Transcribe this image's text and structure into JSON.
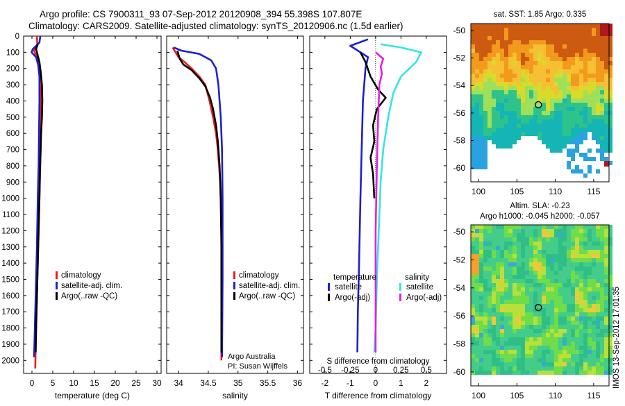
{
  "header": {
    "line1": "Argo profile: CS 7900311_93 07-Sep-2012 20120908_394 55.398S 107.807E",
    "line2": "Climatology: CARS2009. Satellite-adjusted climatology: synTS_20120906.nc (1.5d earlier)"
  },
  "footer_notes": {
    "argo_australia": "Argo Australia",
    "pi": "PI: Susan Wijffels"
  },
  "side_label": "IMOS 13-Sep-2012 17:01:35",
  "colors": {
    "red": "#ee1c1c",
    "blue": "#1e1ed2",
    "black": "#000000",
    "cyan": "#33e6e6",
    "magenta": "#e61ee6"
  },
  "map_colors": {
    "sst": [
      "#cc5a10",
      "#f29a1c",
      "#f5c033",
      "#d9da2a",
      "#9ee05a",
      "#2ec38a",
      "#15b5b5"
    ],
    "sla": [
      "#2fbf86",
      "#44cc8a",
      "#6fdc4a",
      "#b9e03a",
      "#f2c63a",
      "#38a8d8"
    ]
  },
  "chart_data": [
    {
      "type": "line",
      "id": "temperature",
      "xlabel": "temperature (deg C)",
      "xlim": [
        -2,
        31
      ],
      "xticks": [
        0,
        5,
        10,
        15,
        20,
        25,
        30
      ],
      "ylim": [
        2080,
        0
      ],
      "yticks": [
        0,
        100,
        200,
        300,
        400,
        500,
        600,
        700,
        800,
        900,
        1000,
        1100,
        1200,
        1300,
        1400,
        1500,
        1600,
        1700,
        1800,
        1900,
        2000
      ],
      "legend": [
        "climatology",
        "satellite-adj. clim.",
        "Argo(..raw -QC)"
      ],
      "series": [
        {
          "name": "climatology",
          "color": "red",
          "points": [
            [
              1.2,
              0
            ],
            [
              1.3,
              60
            ],
            [
              0.5,
              90
            ],
            [
              1.2,
              130
            ],
            [
              1.8,
              180
            ],
            [
              2.0,
              250
            ],
            [
              2.1,
              400
            ],
            [
              2.1,
              600
            ],
            [
              2.0,
              800
            ],
            [
              1.8,
              1000
            ],
            [
              1.5,
              1300
            ],
            [
              1.2,
              1600
            ],
            [
              0.9,
              1900
            ],
            [
              0.8,
              2050
            ]
          ]
        },
        {
          "name": "satellite-adj. clim.",
          "color": "blue",
          "points": [
            [
              2.0,
              0
            ],
            [
              1.8,
              40
            ],
            [
              0.2,
              80
            ],
            [
              -0.1,
              100
            ],
            [
              1.0,
              130
            ],
            [
              1.5,
              180
            ],
            [
              1.8,
              250
            ],
            [
              1.8,
              400
            ],
            [
              1.7,
              600
            ],
            [
              1.6,
              800
            ],
            [
              1.4,
              1000
            ],
            [
              1.2,
              1300
            ],
            [
              0.9,
              1600
            ],
            [
              0.6,
              1900
            ],
            [
              0.5,
              1980
            ]
          ]
        },
        {
          "name": "Argo(..raw -QC)",
          "color": "black",
          "points": [
            [
              1.4,
              50
            ],
            [
              1.0,
              80
            ],
            [
              1.3,
              110
            ],
            [
              1.8,
              160
            ],
            [
              2.1,
              220
            ],
            [
              2.4,
              300
            ],
            [
              2.5,
              400
            ],
            [
              2.4,
              500
            ],
            [
              2.2,
              600
            ],
            [
              2.1,
              700
            ],
            [
              1.9,
              850
            ],
            [
              1.8,
              1000
            ],
            [
              1.6,
              1200
            ],
            [
              1.3,
              1500
            ],
            [
              1.0,
              1800
            ],
            [
              0.9,
              1950
            ]
          ]
        }
      ]
    },
    {
      "type": "line",
      "id": "salinity",
      "xlabel": "salinity",
      "xlim": [
        33.8,
        36.1
      ],
      "xticks": [
        34,
        34.5,
        35,
        35.5,
        36
      ],
      "ylim": [
        2080,
        0
      ],
      "legend": [
        "climatology",
        "satellite-adj. clim.",
        "Argo(..raw -QC)"
      ],
      "series": [
        {
          "name": "climatology",
          "color": "red",
          "points": [
            [
              33.9,
              70
            ],
            [
              34.0,
              130
            ],
            [
              34.1,
              160
            ],
            [
              34.22,
              200
            ],
            [
              34.35,
              250
            ],
            [
              34.45,
              300
            ],
            [
              34.52,
              400
            ],
            [
              34.58,
              500
            ],
            [
              34.63,
              600
            ],
            [
              34.66,
              700
            ],
            [
              34.7,
              900
            ],
            [
              34.72,
              1200
            ],
            [
              34.72,
              1600
            ],
            [
              34.72,
              2000
            ]
          ]
        },
        {
          "name": "satellite-adj. clim.",
          "color": "blue",
          "points": [
            [
              33.92,
              70
            ],
            [
              34.05,
              90
            ],
            [
              34.35,
              110
            ],
            [
              34.55,
              150
            ],
            [
              34.63,
              200
            ],
            [
              34.67,
              300
            ],
            [
              34.71,
              500
            ],
            [
              34.73,
              700
            ],
            [
              34.74,
              1000
            ],
            [
              34.74,
              1500
            ],
            [
              34.73,
              1980
            ]
          ]
        },
        {
          "name": "Argo(..raw -QC)",
          "color": "black",
          "points": [
            [
              33.98,
              90
            ],
            [
              34.02,
              140
            ],
            [
              34.08,
              175
            ],
            [
              34.22,
              210
            ],
            [
              34.35,
              260
            ],
            [
              34.45,
              310
            ],
            [
              34.53,
              380
            ],
            [
              34.58,
              450
            ],
            [
              34.63,
              550
            ],
            [
              34.66,
              650
            ],
            [
              34.69,
              800
            ],
            [
              34.71,
              1000
            ],
            [
              34.72,
              1300
            ],
            [
              34.72,
              1700
            ],
            [
              34.72,
              1950
            ]
          ]
        }
      ]
    },
    {
      "type": "line",
      "id": "differences",
      "xlabel": "T difference from climatology",
      "xlabel_top": "S difference from climatology",
      "xlim": [
        -2.6,
        2.8
      ],
      "xticks": [
        -2,
        -1,
        0,
        1,
        2
      ],
      "xticks_top": [
        {
          "label": "-0.5",
          "x": -2
        },
        {
          "label": "-0.25",
          "x": -1
        },
        {
          "label": "0",
          "x": 0
        },
        {
          "label": "0.25",
          "x": 1
        },
        {
          "label": "0.5",
          "x": 2
        }
      ],
      "ylim": [
        2080,
        0
      ],
      "legend_titles": [
        "temperature",
        "salinity"
      ],
      "legend": [
        "satellite",
        "Argo(-adj)",
        "satellite",
        "Argo(-adj)"
      ],
      "series": [
        {
          "name": "temperature satellite",
          "color": "blue",
          "points": [
            [
              -0.3,
              20
            ],
            [
              -1.0,
              60
            ],
            [
              -0.6,
              100
            ],
            [
              -0.3,
              130
            ],
            [
              -0.4,
              200
            ],
            [
              -0.5,
              400
            ],
            [
              -0.55,
              700
            ],
            [
              -0.6,
              1000
            ],
            [
              -0.65,
              1400
            ],
            [
              -0.7,
              1700
            ],
            [
              -0.72,
              1950
            ]
          ]
        },
        {
          "name": "temperature Argo(-adj)",
          "color": "black",
          "points": [
            [
              -0.6,
              100
            ],
            [
              -0.4,
              160
            ],
            [
              -0.2,
              250
            ],
            [
              0.1,
              330
            ],
            [
              0.4,
              380
            ],
            [
              0.05,
              450
            ],
            [
              -0.1,
              550
            ],
            [
              -0.05,
              650
            ],
            [
              -0.2,
              750
            ],
            [
              -0.1,
              850
            ],
            [
              -0.05,
              1000
            ]
          ]
        },
        {
          "name": "salinity satellite",
          "color": "cyan",
          "points": [
            [
              0.2,
              50
            ],
            [
              1.0,
              70
            ],
            [
              1.8,
              100
            ],
            [
              1.6,
              160
            ],
            [
              1.0,
              250
            ],
            [
              0.7,
              350
            ],
            [
              0.5,
              500
            ],
            [
              0.3,
              700
            ],
            [
              0.2,
              900
            ],
            [
              0.15,
              1100
            ],
            [
              0.05,
              1500
            ],
            [
              0.0,
              1800
            ],
            [
              -0.05,
              1950
            ]
          ]
        },
        {
          "name": "salinity Argo(-adj)",
          "color": "magenta",
          "points": [
            [
              0.0,
              100
            ],
            [
              0.3,
              140
            ],
            [
              0.2,
              190
            ],
            [
              0.25,
              230
            ],
            [
              0.15,
              300
            ],
            [
              0.1,
              500
            ],
            [
              0.05,
              800
            ],
            [
              0.0,
              1200
            ],
            [
              0.0,
              1700
            ],
            [
              0.0,
              1950
            ]
          ]
        }
      ]
    },
    {
      "type": "heatmap",
      "id": "sst_map",
      "title": "sat. SST: 1.85 Argo: 0.335",
      "xlim": [
        99,
        117
      ],
      "ylim": [
        -61,
        -49.5
      ],
      "xticks": [
        100,
        105,
        110,
        115
      ],
      "yticks": [
        -50,
        -52,
        -54,
        -56,
        -58,
        -60
      ],
      "argo_position": [
        107.8,
        -55.4
      ]
    },
    {
      "type": "heatmap",
      "id": "sla_map",
      "title": "Altim. SLA: -0.23",
      "subtitle": "Argo h1000: -0.045 h2000: -0.057",
      "xlim": [
        99,
        117
      ],
      "ylim": [
        -61,
        -49.5
      ],
      "xticks": [
        100,
        105,
        110,
        115
      ],
      "yticks": [
        -50,
        -52,
        -54,
        -56,
        -58,
        -60
      ],
      "argo_position": [
        107.8,
        -55.4
      ]
    }
  ]
}
